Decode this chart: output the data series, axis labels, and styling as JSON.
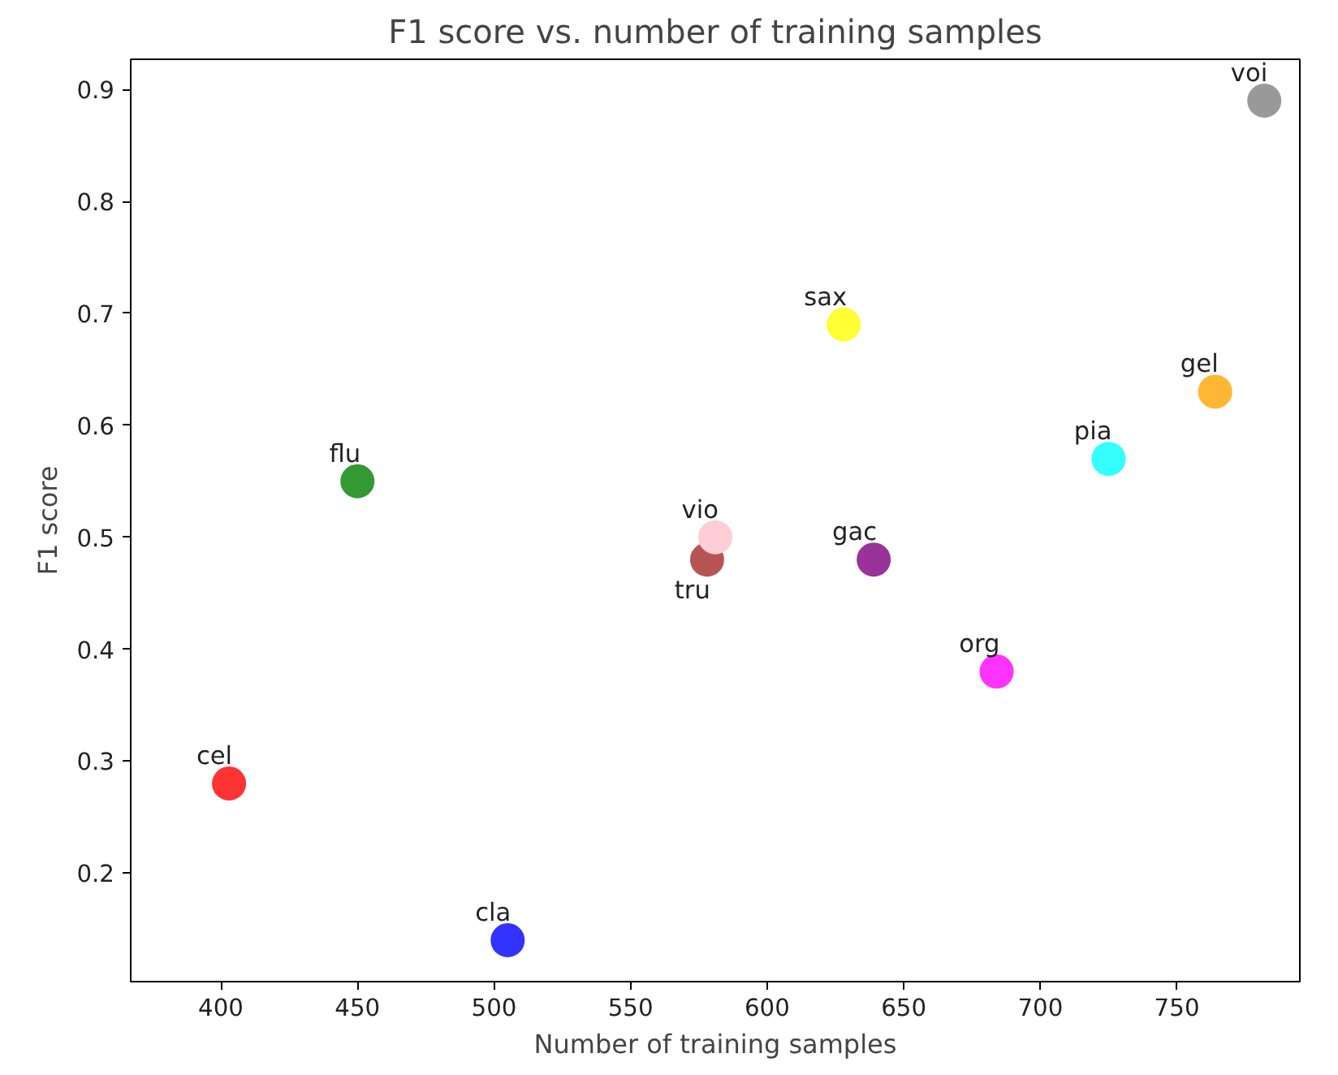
{
  "chart_data": {
    "type": "scatter",
    "title": "F1 score vs. number of training samples",
    "xlabel": "Number of training samples",
    "ylabel": "F1 score",
    "x": [
      403,
      505,
      450,
      578,
      581,
      628,
      639,
      684,
      725,
      764,
      782
    ],
    "values": [
      0.28,
      0.14,
      0.55,
      0.48,
      0.5,
      0.69,
      0.48,
      0.38,
      0.57,
      0.63,
      0.89
    ],
    "colors": [
      "#ff3333",
      "#3333ff",
      "#339933",
      "#b75555",
      "#ffcdd5",
      "#ffff33",
      "#993399",
      "#ff33ff",
      "#33ffff",
      "#ffb733",
      "#999999"
    ],
    "marker": "circle",
    "annotations": [
      {
        "text": "cel",
        "x": 403,
        "y": 0.28
      },
      {
        "text": "cla",
        "x": 505,
        "y": 0.14
      },
      {
        "text": "flu",
        "x": 450,
        "y": 0.55
      },
      {
        "text": "tru",
        "x": 578,
        "y": 0.48
      },
      {
        "text": "vio",
        "x": 581,
        "y": 0.5
      },
      {
        "text": "sax",
        "x": 628,
        "y": 0.69
      },
      {
        "text": "gac",
        "x": 639,
        "y": 0.48
      },
      {
        "text": "org",
        "x": 684,
        "y": 0.38
      },
      {
        "text": "pia",
        "x": 725,
        "y": 0.57
      },
      {
        "text": "gel",
        "x": 764,
        "y": 0.63
      },
      {
        "text": "voi",
        "x": 782,
        "y": 0.89
      }
    ],
    "xlim": [
      367,
      795
    ],
    "ylim": [
      0.103,
      0.927
    ],
    "xticks": [
      400,
      450,
      500,
      550,
      600,
      650,
      700,
      750
    ],
    "yticks": [
      0.2,
      0.3,
      0.4,
      0.5,
      0.6,
      0.7,
      0.8,
      0.9
    ],
    "grid": false
  }
}
